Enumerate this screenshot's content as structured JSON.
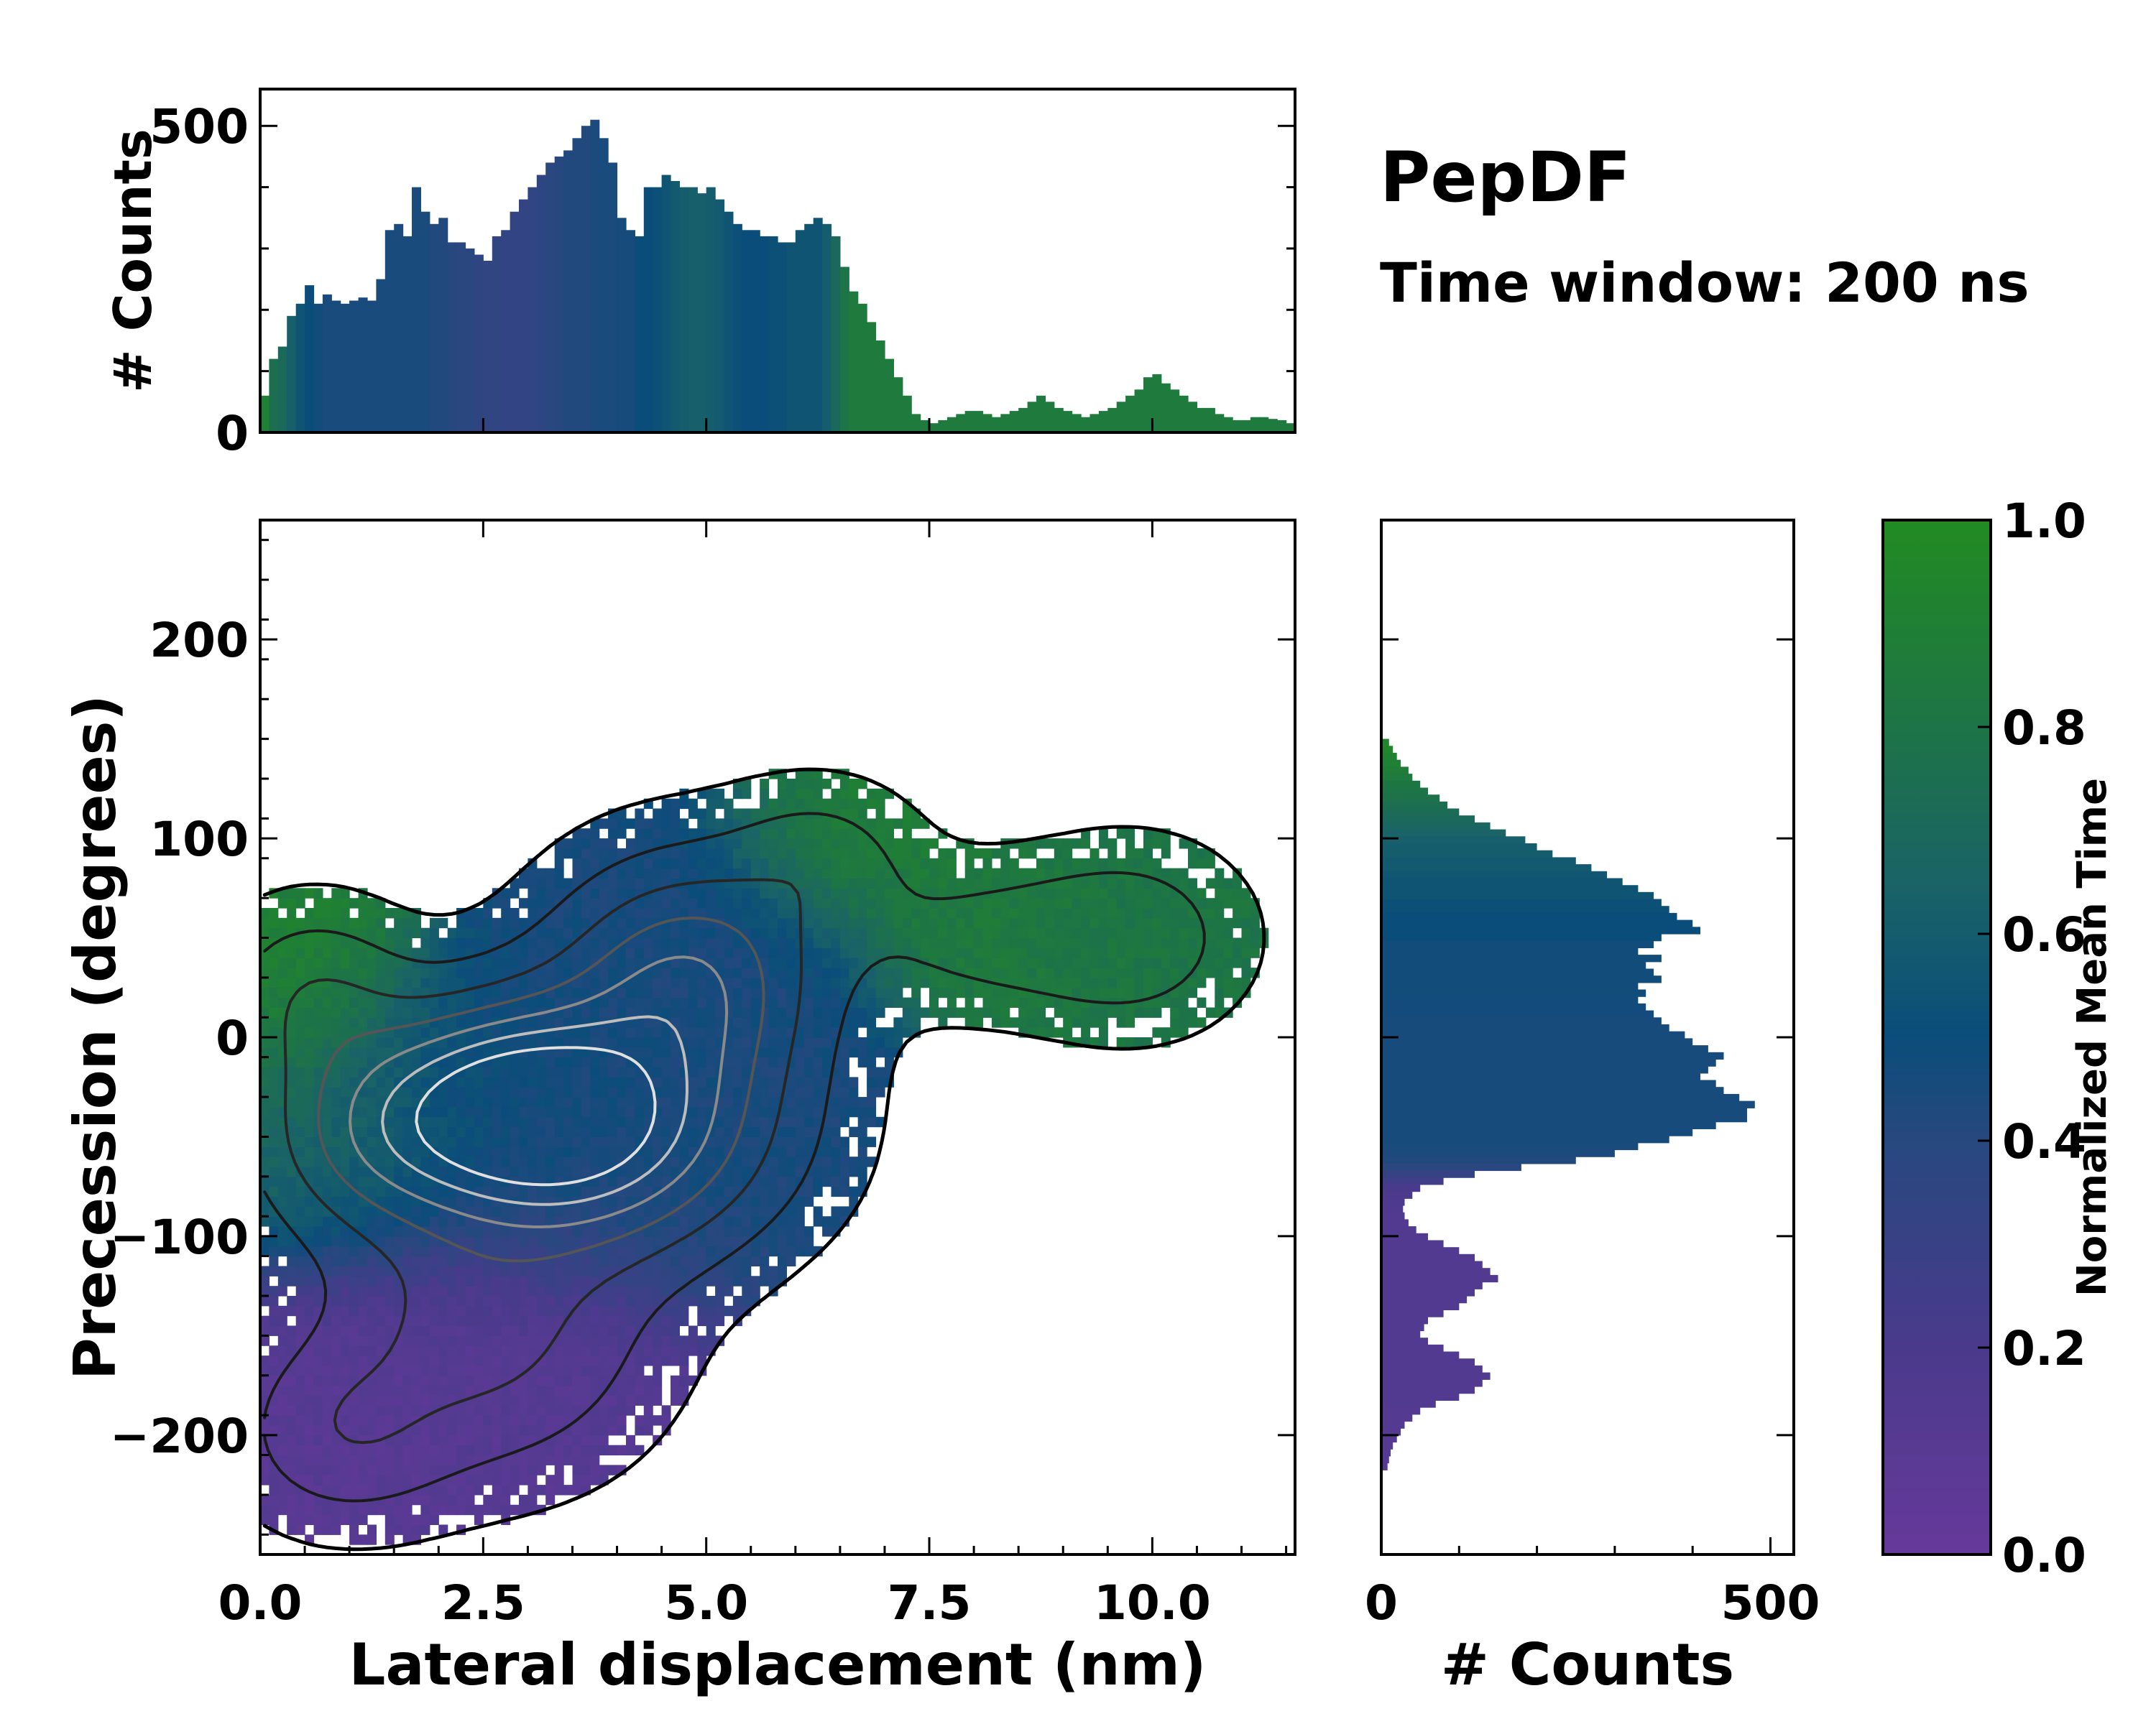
{
  "chart_data": {
    "type": "histogram2d",
    "title": "PepDF",
    "subtitle": "Time window: 200 ns",
    "colors": {
      "low": "#6a3d9a",
      "mid": "#0b4d7a",
      "high": "#228b22",
      "contour_dark": "#1a1a1a",
      "contour_light": "#d9d9d9"
    },
    "main": {
      "xlabel": "Lateral displacement (nm)",
      "ylabel": "Precession (degrees)",
      "xlim": [
        0,
        11.6
      ],
      "ylim": [
        -260,
        260
      ],
      "xticks": [
        0.0,
        2.5,
        5.0,
        7.5,
        10.0
      ],
      "xtick_labels": [
        "0.0",
        "2.5",
        "5.0",
        "7.5",
        "10.0"
      ],
      "yticks": [
        200,
        100,
        0,
        -100,
        -200
      ],
      "ytick_labels": [
        "200",
        "100",
        "0",
        "−100",
        "−200"
      ],
      "clusters": [
        {
          "x": 3.8,
          "y": -50,
          "sx": 1.3,
          "sy": 40,
          "w": 1.0,
          "t": 0.45
        },
        {
          "x": 2.7,
          "y": -30,
          "sx": 1.0,
          "sy": 35,
          "w": 0.8,
          "t": 0.5
        },
        {
          "x": 4.8,
          "y": 30,
          "sx": 1.0,
          "sy": 40,
          "w": 0.75,
          "t": 0.45
        },
        {
          "x": 1.2,
          "y": -50,
          "sx": 0.9,
          "sy": 35,
          "w": 0.5,
          "t": 0.7
        },
        {
          "x": 0.6,
          "y": 20,
          "sx": 0.7,
          "sy": 30,
          "w": 0.35,
          "t": 0.9
        },
        {
          "x": 2.5,
          "y": -150,
          "sx": 1.2,
          "sy": 45,
          "w": 0.45,
          "t": 0.12
        },
        {
          "x": 0.9,
          "y": -200,
          "sx": 0.8,
          "sy": 30,
          "w": 0.3,
          "t": 0.1
        },
        {
          "x": 6.3,
          "y": 90,
          "sx": 0.7,
          "sy": 25,
          "w": 0.25,
          "t": 0.9
        },
        {
          "x": 8.2,
          "y": 50,
          "sx": 1.0,
          "sy": 25,
          "w": 0.25,
          "t": 0.85
        },
        {
          "x": 9.8,
          "y": 50,
          "sx": 0.8,
          "sy": 30,
          "w": 0.3,
          "t": 0.8
        }
      ]
    },
    "top_hist": {
      "ylabel": "# Counts",
      "ylim": [
        0,
        560
      ],
      "yticks": [
        500,
        0
      ],
      "ytick_labels": [
        "500",
        "0"
      ],
      "x_start": 0.0,
      "bin_width": 0.1,
      "counts": [
        60,
        120,
        140,
        190,
        210,
        240,
        210,
        225,
        215,
        210,
        215,
        220,
        215,
        250,
        330,
        340,
        320,
        400,
        360,
        340,
        350,
        310,
        310,
        300,
        290,
        280,
        320,
        330,
        360,
        380,
        400,
        420,
        440,
        450,
        460,
        480,
        500,
        510,
        480,
        440,
        350,
        330,
        320,
        400,
        400,
        420,
        410,
        400,
        400,
        390,
        400,
        380,
        360,
        340,
        330,
        330,
        320,
        320,
        310,
        310,
        330,
        340,
        350,
        340,
        320,
        270,
        230,
        210,
        180,
        150,
        120,
        90,
        60,
        30,
        20,
        15,
        20,
        25,
        30,
        35,
        35,
        30,
        25,
        30,
        35,
        40,
        50,
        60,
        50,
        40,
        35,
        30,
        25,
        30,
        35,
        40,
        50,
        60,
        70,
        90,
        95,
        80,
        70,
        60,
        50,
        40,
        40,
        30,
        25,
        20,
        20,
        25,
        25,
        22,
        20,
        15,
        10,
        8
      ],
      "time_values": [
        0.9,
        0.75,
        0.7,
        0.62,
        0.55,
        0.5,
        0.48,
        0.45,
        0.45,
        0.45,
        0.45,
        0.45,
        0.45,
        0.45,
        0.45,
        0.45,
        0.45,
        0.45,
        0.45,
        0.42,
        0.42,
        0.4,
        0.38,
        0.38,
        0.36,
        0.35,
        0.35,
        0.34,
        0.34,
        0.34,
        0.35,
        0.36,
        0.38,
        0.4,
        0.42,
        0.42,
        0.42,
        0.44,
        0.45,
        0.45,
        0.46,
        0.46,
        0.5,
        0.5,
        0.52,
        0.55,
        0.58,
        0.6,
        0.62,
        0.62,
        0.6,
        0.58,
        0.55,
        0.52,
        0.5,
        0.5,
        0.5,
        0.52,
        0.52,
        0.55,
        0.55,
        0.55,
        0.55,
        0.6,
        0.7,
        0.8,
        0.85,
        0.85,
        0.85,
        0.85,
        0.85,
        0.85,
        0.85,
        0.85,
        0.85,
        0.85,
        0.85,
        0.85,
        0.85,
        0.85,
        0.85,
        0.85,
        0.85,
        0.85,
        0.85,
        0.85,
        0.85,
        0.85,
        0.85,
        0.85,
        0.85,
        0.85,
        0.85,
        0.85,
        0.85,
        0.85,
        0.85,
        0.85,
        0.85,
        0.85,
        0.85,
        0.85,
        0.85,
        0.85,
        0.85,
        0.85,
        0.85,
        0.85,
        0.85,
        0.85,
        0.85,
        0.85,
        0.85,
        0.85,
        0.85,
        0.85,
        0.85,
        0.85
      ]
    },
    "right_hist": {
      "xlabel": "# Counts",
      "xlim": [
        0,
        530
      ],
      "xticks": [
        0,
        500
      ],
      "xtick_labels": [
        "0",
        "500"
      ],
      "y_start": 150,
      "bin_width": 3.5,
      "counts": [
        10,
        15,
        20,
        25,
        35,
        40,
        50,
        60,
        75,
        85,
        100,
        120,
        140,
        160,
        185,
        200,
        220,
        250,
        270,
        290,
        310,
        330,
        350,
        360,
        370,
        380,
        400,
        410,
        360,
        350,
        330,
        360,
        340,
        350,
        360,
        330,
        340,
        330,
        340,
        350,
        360,
        370,
        390,
        400,
        420,
        440,
        430,
        420,
        410,
        430,
        440,
        460,
        480,
        470,
        470,
        430,
        400,
        370,
        330,
        300,
        250,
        180,
        120,
        80,
        50,
        40,
        30,
        28,
        30,
        35,
        45,
        60,
        80,
        100,
        120,
        130,
        140,
        150,
        130,
        120,
        110,
        100,
        80,
        60,
        55,
        50,
        60,
        80,
        100,
        120,
        130,
        140,
        130,
        120,
        100,
        70,
        50,
        40,
        30,
        25,
        20,
        15,
        12,
        10,
        8
      ],
      "time_values": [
        0.95,
        0.95,
        0.92,
        0.9,
        0.88,
        0.85,
        0.82,
        0.8,
        0.78,
        0.75,
        0.72,
        0.7,
        0.68,
        0.65,
        0.62,
        0.6,
        0.6,
        0.58,
        0.58,
        0.56,
        0.55,
        0.55,
        0.55,
        0.52,
        0.52,
        0.5,
        0.5,
        0.5,
        0.5,
        0.48,
        0.48,
        0.48,
        0.48,
        0.48,
        0.48,
        0.48,
        0.48,
        0.47,
        0.47,
        0.47,
        0.46,
        0.46,
        0.46,
        0.46,
        0.46,
        0.46,
        0.46,
        0.46,
        0.46,
        0.46,
        0.46,
        0.46,
        0.46,
        0.46,
        0.46,
        0.46,
        0.46,
        0.46,
        0.45,
        0.44,
        0.42,
        0.38,
        0.32,
        0.26,
        0.2,
        0.18,
        0.17,
        0.16,
        0.15,
        0.15,
        0.15,
        0.15,
        0.15,
        0.15,
        0.15,
        0.15,
        0.15,
        0.15,
        0.15,
        0.15,
        0.15,
        0.15,
        0.15,
        0.15,
        0.15,
        0.14,
        0.14,
        0.14,
        0.14,
        0.14,
        0.14,
        0.14,
        0.14,
        0.14,
        0.14,
        0.14,
        0.13,
        0.13,
        0.13,
        0.13,
        0.13,
        0.12,
        0.12,
        0.12,
        0.12
      ]
    },
    "colorbar": {
      "label": "Normalized Mean Time",
      "ticks": [
        1.0,
        0.8,
        0.6,
        0.4,
        0.2,
        0.0
      ],
      "tick_labels": [
        "1.0",
        "0.8",
        "0.6",
        "0.4",
        "0.2",
        "0.0"
      ],
      "stops": [
        {
          "v": 0.0,
          "c": "#66399a"
        },
        {
          "v": 0.2,
          "c": "#4a3a8c"
        },
        {
          "v": 0.4,
          "c": "#27487f"
        },
        {
          "v": 0.5,
          "c": "#0b4d7a"
        },
        {
          "v": 0.65,
          "c": "#1a6366"
        },
        {
          "v": 0.8,
          "c": "#1d7446"
        },
        {
          "v": 1.0,
          "c": "#228b22"
        }
      ]
    }
  }
}
